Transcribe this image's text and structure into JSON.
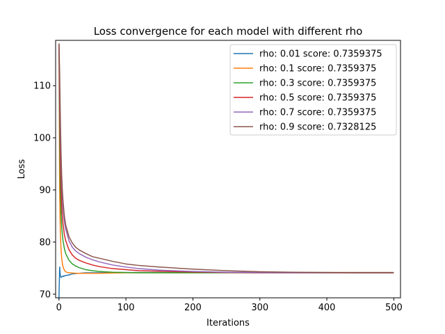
{
  "chart_data": {
    "type": "line",
    "title": "Loss convergence for each model with different rho",
    "xlabel": "Iterations",
    "ylabel": "Loss",
    "xlim": [
      -5,
      510
    ],
    "ylim": [
      69.3,
      118.7
    ],
    "xticks": [
      0,
      100,
      200,
      300,
      400,
      500
    ],
    "yticks": [
      70,
      80,
      90,
      100,
      110
    ],
    "grid": false,
    "legend_position": "top-right",
    "series": [
      {
        "name": "rho: 0.01 score: 0.7359375",
        "color": "#1f77b4",
        "x": [
          0,
          1,
          2,
          3,
          4,
          5,
          6,
          7,
          8,
          10,
          12,
          14,
          16,
          18,
          20,
          22,
          25,
          30,
          35,
          40,
          50,
          60,
          80,
          100,
          150,
          200,
          300,
          400,
          499
        ],
        "y": [
          69.3,
          75.2,
          73.6,
          73.2,
          73.3,
          73.4,
          73.5,
          73.4,
          73.5,
          73.6,
          73.6,
          73.7,
          73.7,
          73.8,
          73.9,
          73.9,
          73.95,
          74.0,
          74.05,
          74.1,
          74.1,
          74.1,
          74.15,
          74.15,
          74.15,
          74.15,
          74.15,
          74.15,
          74.15
        ]
      },
      {
        "name": "rho: 0.1 score: 0.7359375",
        "color": "#ff7f0e",
        "x": [
          0,
          1,
          2,
          3,
          4,
          5,
          6,
          8,
          10,
          12,
          15,
          20,
          25,
          30,
          40,
          50,
          60,
          80,
          100,
          150,
          200,
          300,
          400,
          499
        ],
        "y": [
          118.0,
          90.0,
          82.0,
          78.8,
          77.0,
          76.0,
          75.3,
          74.6,
          74.3,
          74.2,
          74.1,
          74.05,
          74.0,
          74.0,
          74.0,
          74.0,
          74.0,
          74.05,
          74.1,
          74.1,
          74.1,
          74.15,
          74.15,
          74.15
        ]
      },
      {
        "name": "rho: 0.3 score: 0.7359375",
        "color": "#2ca02c",
        "x": [
          0,
          1,
          2,
          3,
          4,
          5,
          6,
          8,
          10,
          15,
          20,
          25,
          30,
          40,
          50,
          60,
          80,
          100,
          120,
          150,
          200,
          250,
          300,
          400,
          499
        ],
        "y": [
          118.0,
          100.0,
          90.0,
          85.5,
          83.0,
          81.5,
          80.3,
          78.8,
          77.8,
          76.5,
          75.8,
          75.4,
          75.1,
          74.7,
          74.5,
          74.35,
          74.2,
          74.15,
          74.1,
          74.1,
          74.1,
          74.1,
          74.1,
          74.1,
          74.1
        ]
      },
      {
        "name": "rho: 0.5 score: 0.7359375",
        "color": "#d62728",
        "x": [
          0,
          1,
          2,
          3,
          4,
          5,
          6,
          8,
          10,
          15,
          20,
          25,
          30,
          40,
          50,
          60,
          80,
          100,
          120,
          150,
          200,
          250,
          300,
          350,
          400,
          499
        ],
        "y": [
          118.0,
          106.0,
          96.0,
          90.5,
          87.0,
          85.0,
          83.5,
          81.5,
          80.3,
          78.5,
          77.5,
          76.9,
          76.5,
          76.0,
          75.6,
          75.3,
          74.9,
          74.7,
          74.5,
          74.4,
          74.25,
          74.15,
          74.1,
          74.1,
          74.1,
          74.1
        ]
      },
      {
        "name": "rho: 0.7 score: 0.7359375",
        "color": "#9467bd",
        "x": [
          0,
          1,
          2,
          3,
          4,
          5,
          6,
          8,
          10,
          15,
          20,
          25,
          30,
          40,
          50,
          60,
          80,
          100,
          120,
          150,
          200,
          250,
          300,
          350,
          400,
          499
        ],
        "y": [
          118.0,
          110.0,
          101.0,
          95.0,
          91.0,
          88.5,
          86.5,
          84.0,
          82.5,
          80.2,
          79.0,
          78.3,
          77.8,
          77.1,
          76.6,
          76.2,
          75.6,
          75.2,
          74.9,
          74.6,
          74.35,
          74.2,
          74.15,
          74.1,
          74.1,
          74.1
        ]
      },
      {
        "name": "rho: 0.9 score: 0.7328125",
        "color": "#8c564b",
        "x": [
          0,
          1,
          2,
          3,
          4,
          5,
          6,
          8,
          10,
          15,
          20,
          25,
          30,
          40,
          50,
          60,
          80,
          100,
          120,
          150,
          200,
          250,
          300,
          350,
          400,
          450,
          499
        ],
        "y": [
          118.0,
          112.5,
          104.0,
          97.5,
          93.0,
          90.0,
          88.0,
          85.0,
          83.3,
          81.0,
          79.8,
          79.0,
          78.5,
          77.8,
          77.2,
          76.9,
          76.3,
          75.8,
          75.5,
          75.2,
          74.8,
          74.5,
          74.3,
          74.2,
          74.15,
          74.1,
          74.1
        ]
      }
    ]
  }
}
